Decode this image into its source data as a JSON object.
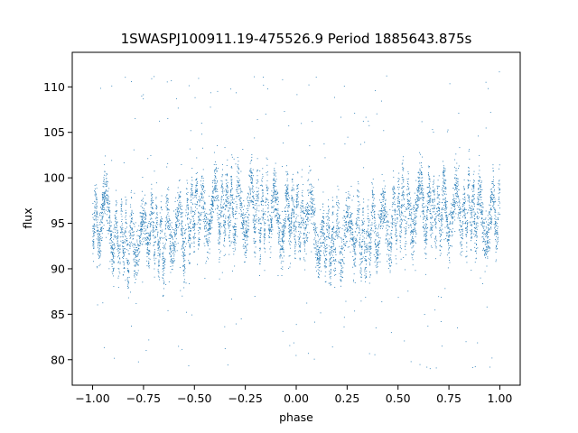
{
  "chart_data": {
    "type": "scatter",
    "title": "1SWASPJ100911.19-475526.9 Period 1885643.875s",
    "xlabel": "phase",
    "ylabel": "flux",
    "xlim": [
      -1.1,
      1.1
    ],
    "ylim": [
      77.2,
      113.8
    ],
    "x_ticks": [
      -1.0,
      -0.75,
      -0.5,
      -0.25,
      0.0,
      0.25,
      0.5,
      0.75,
      1.0
    ],
    "x_tick_labels": [
      "−1.00",
      "−0.75",
      "−0.50",
      "−0.25",
      "0.00",
      "0.25",
      "0.50",
      "0.75",
      "1.00"
    ],
    "y_ticks": [
      80,
      85,
      90,
      95,
      100,
      105,
      110
    ],
    "y_tick_labels": [
      "80",
      "85",
      "90",
      "95",
      "100",
      "105",
      "110"
    ],
    "grid": false,
    "point_color": "#1f77b4",
    "series": [
      {
        "x": [
          -1.0,
          -0.975,
          -0.95,
          -0.925,
          -0.9,
          -0.875,
          -0.85,
          -0.825,
          -0.8,
          -0.775,
          -0.75,
          -0.725,
          -0.7,
          -0.675,
          -0.65,
          -0.625,
          -0.6,
          -0.575,
          -0.55,
          -0.525,
          -0.5,
          -0.475,
          -0.45,
          -0.425,
          -0.4,
          -0.375,
          -0.35,
          -0.325,
          -0.3,
          -0.275,
          -0.25,
          -0.225,
          -0.2,
          -0.175,
          -0.15,
          -0.125,
          -0.1,
          -0.075,
          -0.05,
          -0.025,
          0.0,
          0.025,
          0.05,
          0.075,
          0.1,
          0.125,
          0.15,
          0.175,
          0.2,
          0.225,
          0.25,
          0.275,
          0.3,
          0.325,
          0.35,
          0.375,
          0.4,
          0.425,
          0.45,
          0.475,
          0.5,
          0.525,
          0.55,
          0.575,
          0.6,
          0.625,
          0.65,
          0.675,
          0.7,
          0.725,
          0.75,
          0.775,
          0.8,
          0.825,
          0.85,
          0.875,
          0.9,
          0.925,
          0.95,
          0.975,
          1.0
        ],
        "y": [
          96.0,
          94.5,
          96.5,
          95.0,
          94.0,
          92.5,
          93.5,
          92.0,
          94.0,
          92.5,
          93.0,
          95.0,
          94.5,
          93.0,
          92.5,
          95.5,
          94.0,
          95.0,
          93.0,
          95.5,
          96.0,
          97.0,
          95.5,
          96.5,
          97.5,
          96.0,
          96.5,
          97.0,
          95.5,
          97.0,
          96.0,
          97.5,
          96.5,
          95.0,
          97.0,
          95.5,
          96.5,
          95.0,
          96.0,
          95.5,
          96.0,
          94.5,
          96.5,
          95.0,
          94.0,
          92.5,
          93.5,
          92.0,
          94.0,
          92.5,
          93.0,
          95.0,
          94.5,
          93.0,
          92.5,
          95.5,
          94.0,
          95.0,
          93.0,
          95.5,
          96.0,
          97.0,
          95.5,
          96.5,
          97.5,
          96.0,
          96.5,
          97.0,
          95.5,
          97.0,
          96.0,
          97.5,
          96.5,
          95.0,
          97.0,
          95.5,
          96.5,
          95.0,
          96.0,
          95.5,
          96.0
        ]
      }
    ]
  }
}
